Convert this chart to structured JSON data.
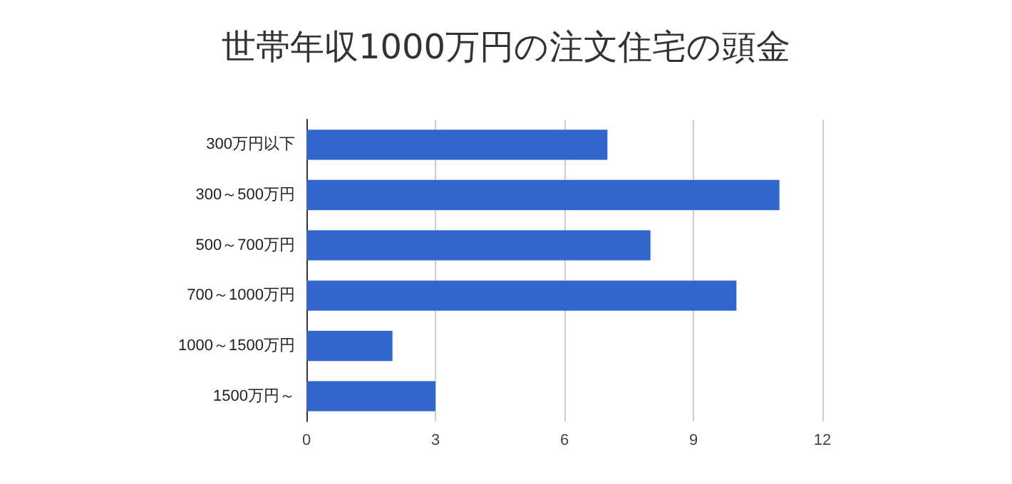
{
  "chart_data": {
    "type": "bar",
    "orientation": "horizontal",
    "title": "世帯年収1000万円の注文住宅の頭金",
    "categories": [
      "300万円以下",
      "300～500万円",
      "500～700万円",
      "700～1000万円",
      "1000～1500万円",
      "1500万円～"
    ],
    "values": [
      7,
      11,
      8,
      10,
      2,
      3
    ],
    "color": "#3366cc",
    "xlim": [
      0,
      12
    ],
    "xticks": [
      0,
      3,
      6,
      9,
      12
    ],
    "grid": "x"
  }
}
